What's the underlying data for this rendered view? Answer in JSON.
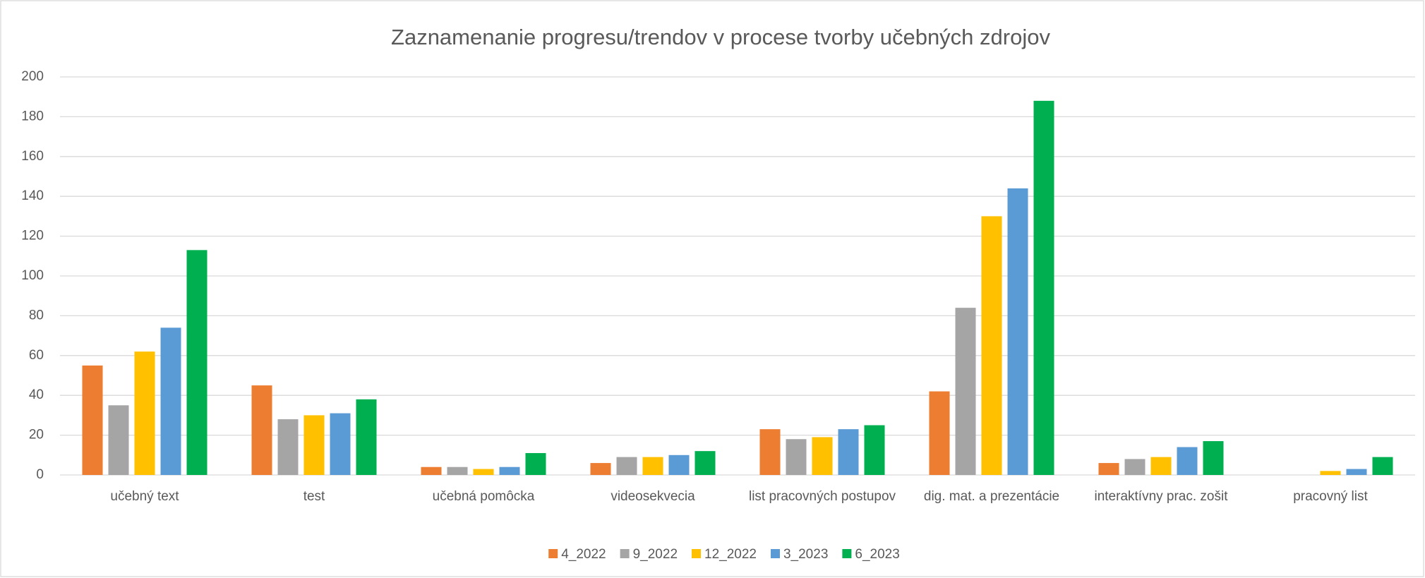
{
  "chart_data": {
    "type": "bar",
    "title": "Zaznamenanie progresu/trendov v procese tvorby učebných zdrojov",
    "categories": [
      "učebný text",
      "test",
      "učebná pomôcka",
      "videosekvecia",
      "list pracovných postupov",
      "dig. mat. a prezentácie",
      "interaktívny prac. zošit",
      "pracovný list"
    ],
    "series": [
      {
        "name": "4_2022",
        "color": "#ed7d31",
        "values": [
          55,
          45,
          4,
          6,
          23,
          42,
          6,
          0
        ]
      },
      {
        "name": "9_2022",
        "color": "#a5a5a5",
        "values": [
          35,
          28,
          4,
          9,
          18,
          84,
          8,
          0
        ]
      },
      {
        "name": "12_2022",
        "color": "#ffc000",
        "values": [
          62,
          30,
          3,
          9,
          19,
          130,
          9,
          2
        ]
      },
      {
        "name": "3_2023",
        "color": "#5b9bd5",
        "values": [
          74,
          31,
          4,
          10,
          23,
          144,
          14,
          3
        ]
      },
      {
        "name": "6_2023",
        "color": "#00b050",
        "values": [
          113,
          38,
          11,
          12,
          25,
          188,
          17,
          9
        ]
      }
    ],
    "ylim": [
      0,
      200
    ],
    "yticks": [
      0,
      20,
      40,
      60,
      80,
      100,
      120,
      140,
      160,
      180,
      200
    ],
    "grid": true,
    "legend": "bottom"
  }
}
